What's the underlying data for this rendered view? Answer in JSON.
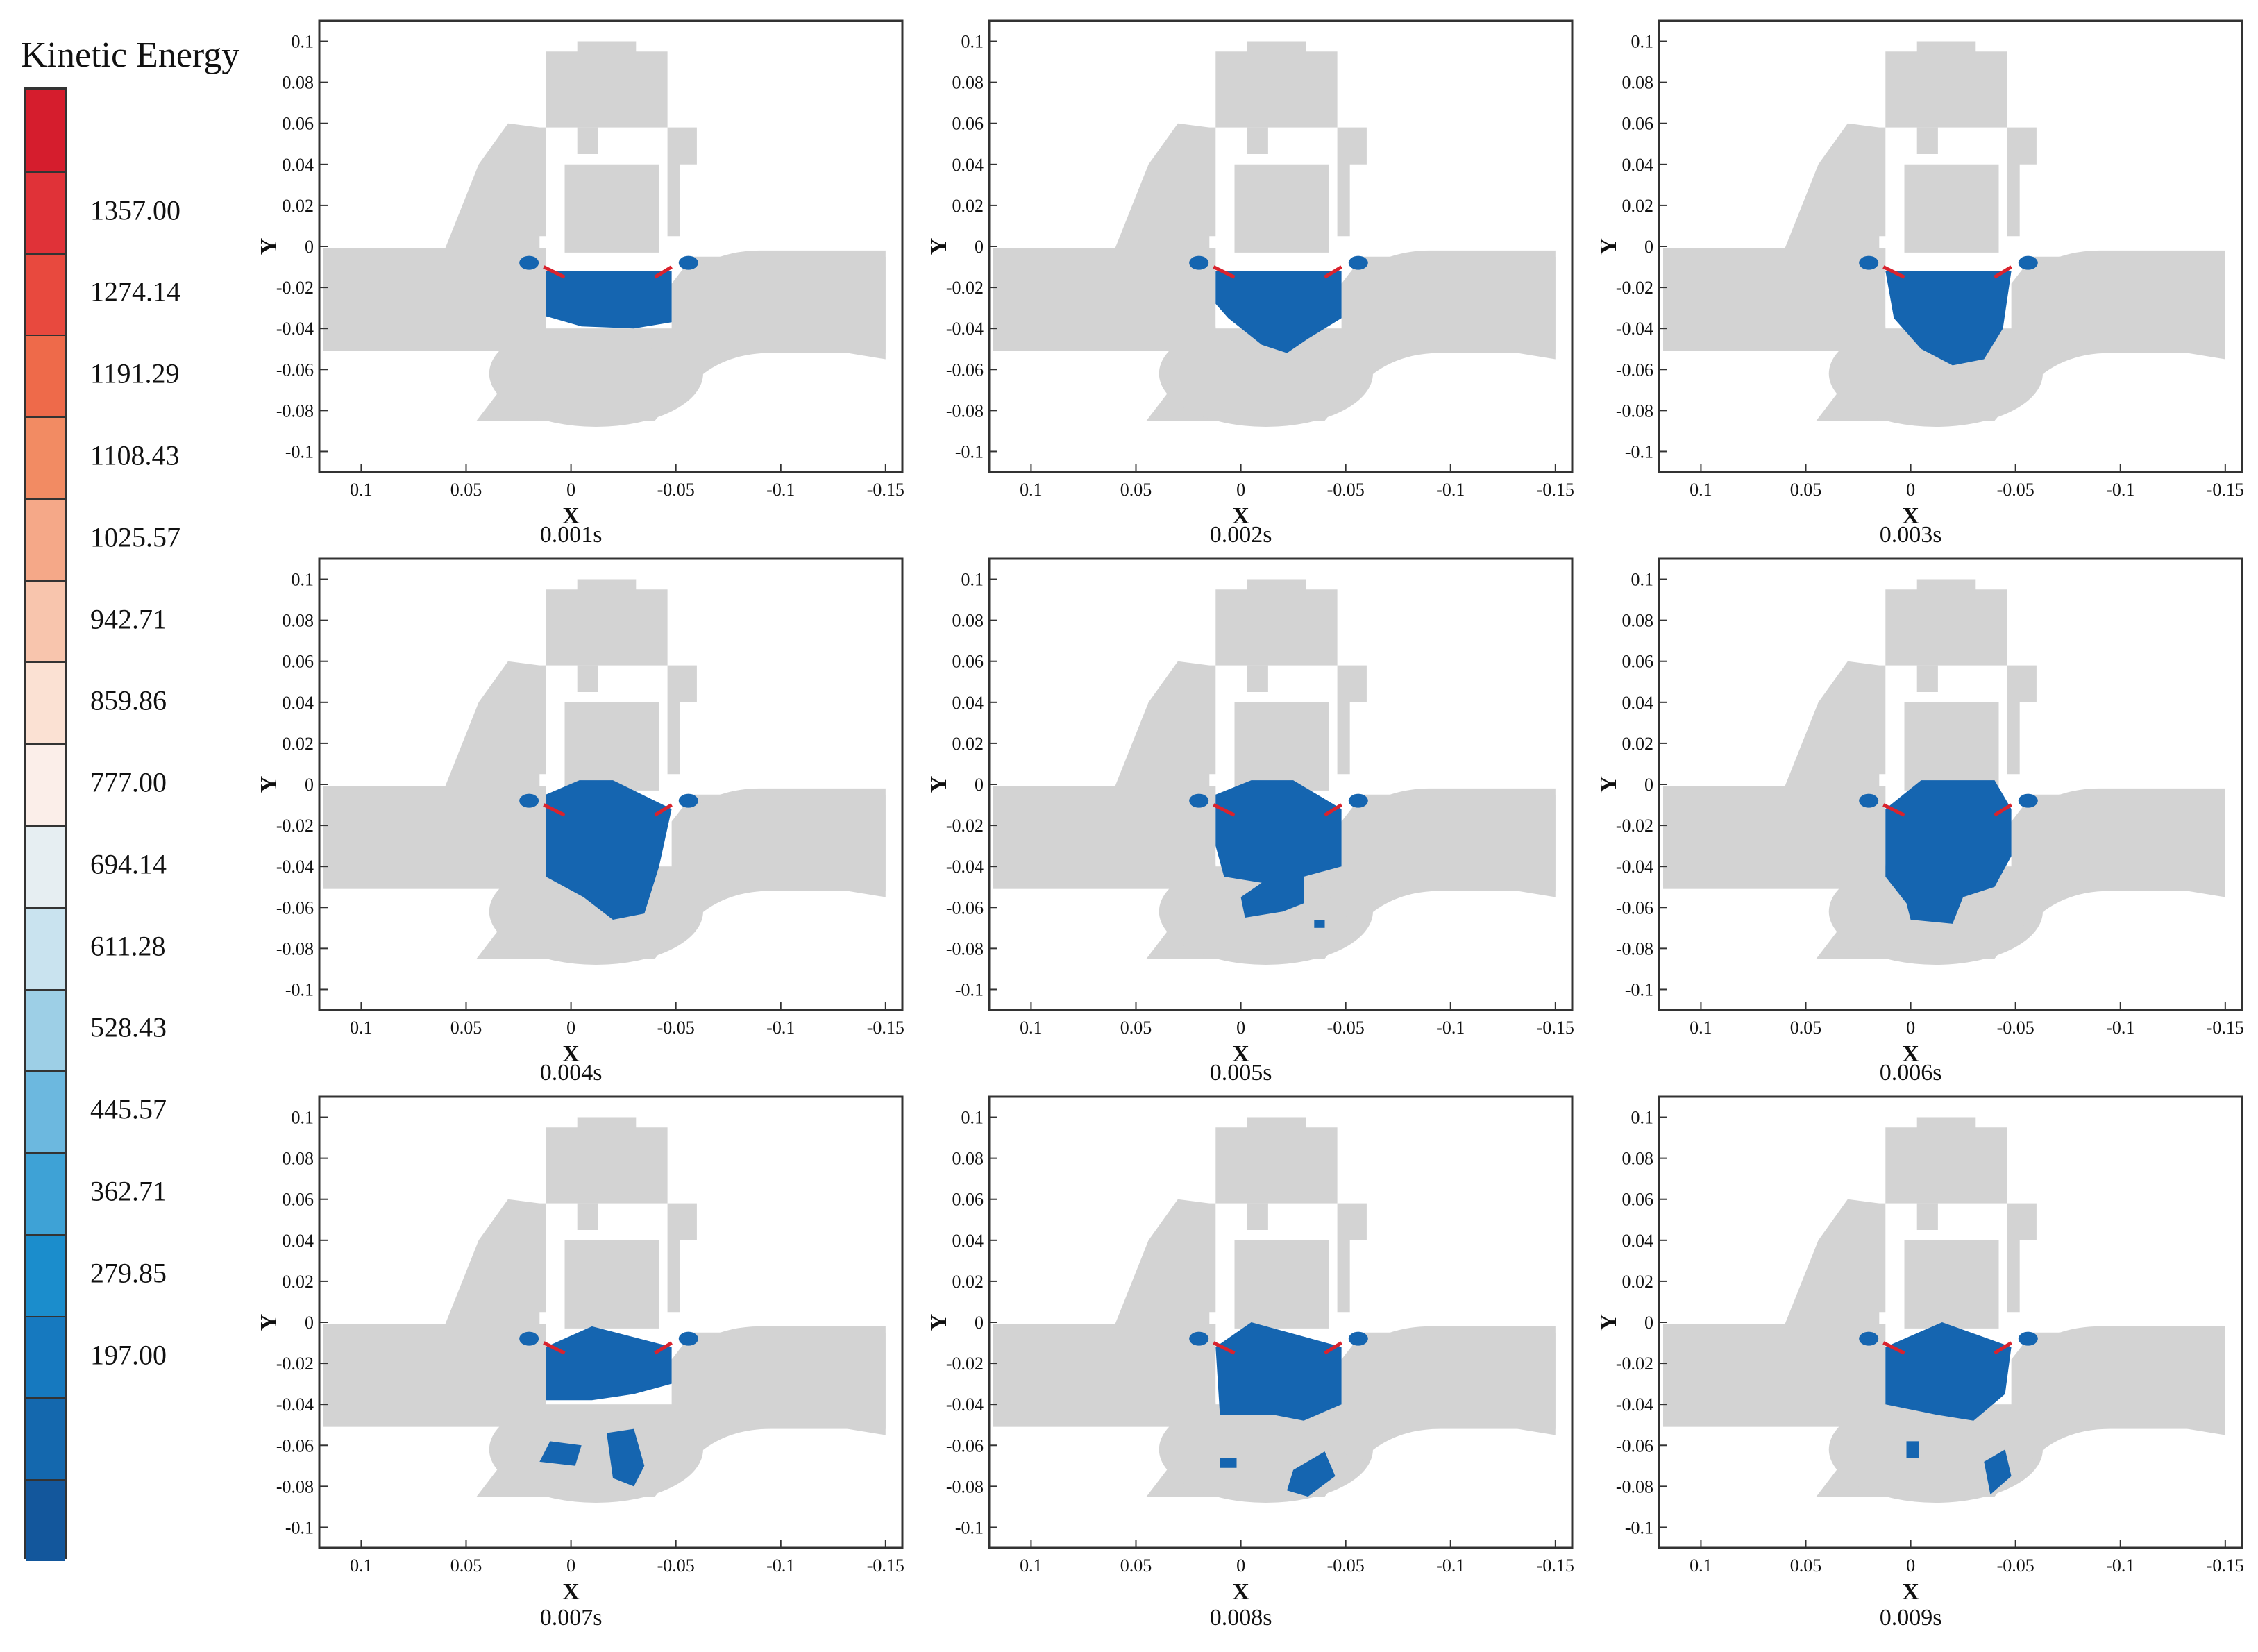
{
  "legend": {
    "title": "Kinetic Energy",
    "levels": [
      "1357.00",
      "1274.14",
      "1191.29",
      "1108.43",
      "1025.57",
      "942.71",
      "859.86",
      "777.00",
      "694.14",
      "611.28",
      "528.43",
      "445.57",
      "362.71",
      "279.85",
      "197.00"
    ],
    "colors": [
      "#d51d2d",
      "#e03238",
      "#e8493e",
      "#ee6a4a",
      "#f28b63",
      "#f5a888",
      "#f8c5ad",
      "#fbe1d3",
      "#fbeee9",
      "#e6eef2",
      "#c9e3ef",
      "#9dcfe6",
      "#6cb8df",
      "#3ea2d6",
      "#1b8dcc",
      "#1679bf",
      "#1468ae",
      "#13579c"
    ]
  },
  "axes": {
    "x_label": "X",
    "y_label": "Y",
    "x_ticks": [
      "0.1",
      "0.05",
      "0",
      "-0.05",
      "-0.1",
      "-0.15"
    ],
    "y_ticks": [
      "0.1",
      "0.08",
      "0.06",
      "0.04",
      "0.02",
      "0",
      "-0.02",
      "-0.04",
      "-0.06",
      "-0.08",
      "-0.1"
    ]
  },
  "colors": {
    "valve_geometry": "#d3d3d3",
    "cavitation_region": "#1565b0",
    "seat_marker": "#d9232e",
    "frame": "#333333"
  },
  "panels": [
    {
      "time": "0.001s",
      "stage": 1
    },
    {
      "time": "0.002s",
      "stage": 2
    },
    {
      "time": "0.003s",
      "stage": 3
    },
    {
      "time": "0.004s",
      "stage": 4
    },
    {
      "time": "0.005s",
      "stage": 5
    },
    {
      "time": "0.006s",
      "stage": 6
    },
    {
      "time": "0.007s",
      "stage": 7
    },
    {
      "time": "0.008s",
      "stage": 8
    },
    {
      "time": "0.009s",
      "stage": 9
    }
  ]
}
